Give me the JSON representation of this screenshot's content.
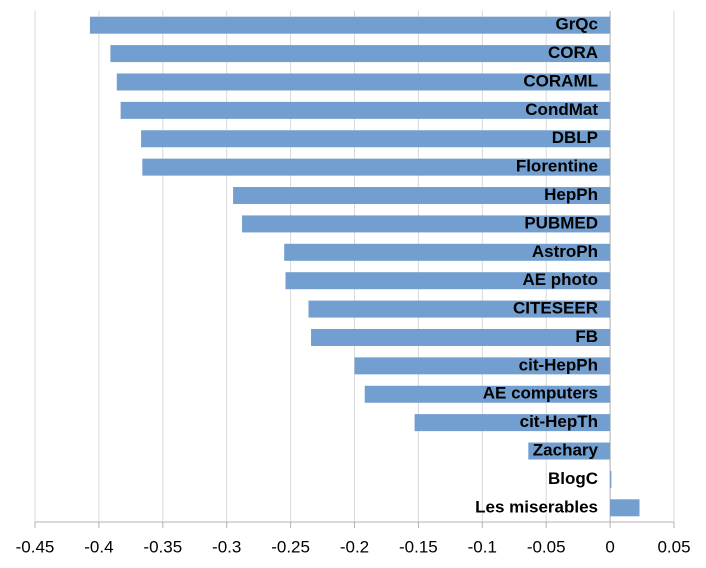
{
  "chart_data": {
    "type": "bar",
    "orientation": "horizontal",
    "categories": [
      "GrQc",
      "CORA",
      "CORAML",
      "CondMat",
      "DBLP",
      "Florentine",
      "HepPh",
      "PUBMED",
      "AstroPh",
      "AE photo",
      "CITESEER",
      "FB",
      "cit-HepPh",
      "AE computers",
      "cit-HepTh",
      "Zachary",
      "BlogC",
      "Les miserables"
    ],
    "values": [
      -0.407,
      -0.391,
      -0.386,
      -0.383,
      -0.367,
      -0.366,
      -0.295,
      -0.288,
      -0.255,
      -0.254,
      -0.236,
      -0.234,
      -0.2,
      -0.192,
      -0.153,
      -0.064,
      0.001,
      0.023
    ],
    "color": "#729fcf",
    "xlim": [
      -0.45,
      0.05
    ],
    "xticks": [
      -0.45,
      -0.4,
      -0.35,
      -0.3,
      -0.25,
      -0.2,
      -0.15,
      -0.1,
      -0.05,
      0,
      0.05
    ],
    "grid": true
  }
}
